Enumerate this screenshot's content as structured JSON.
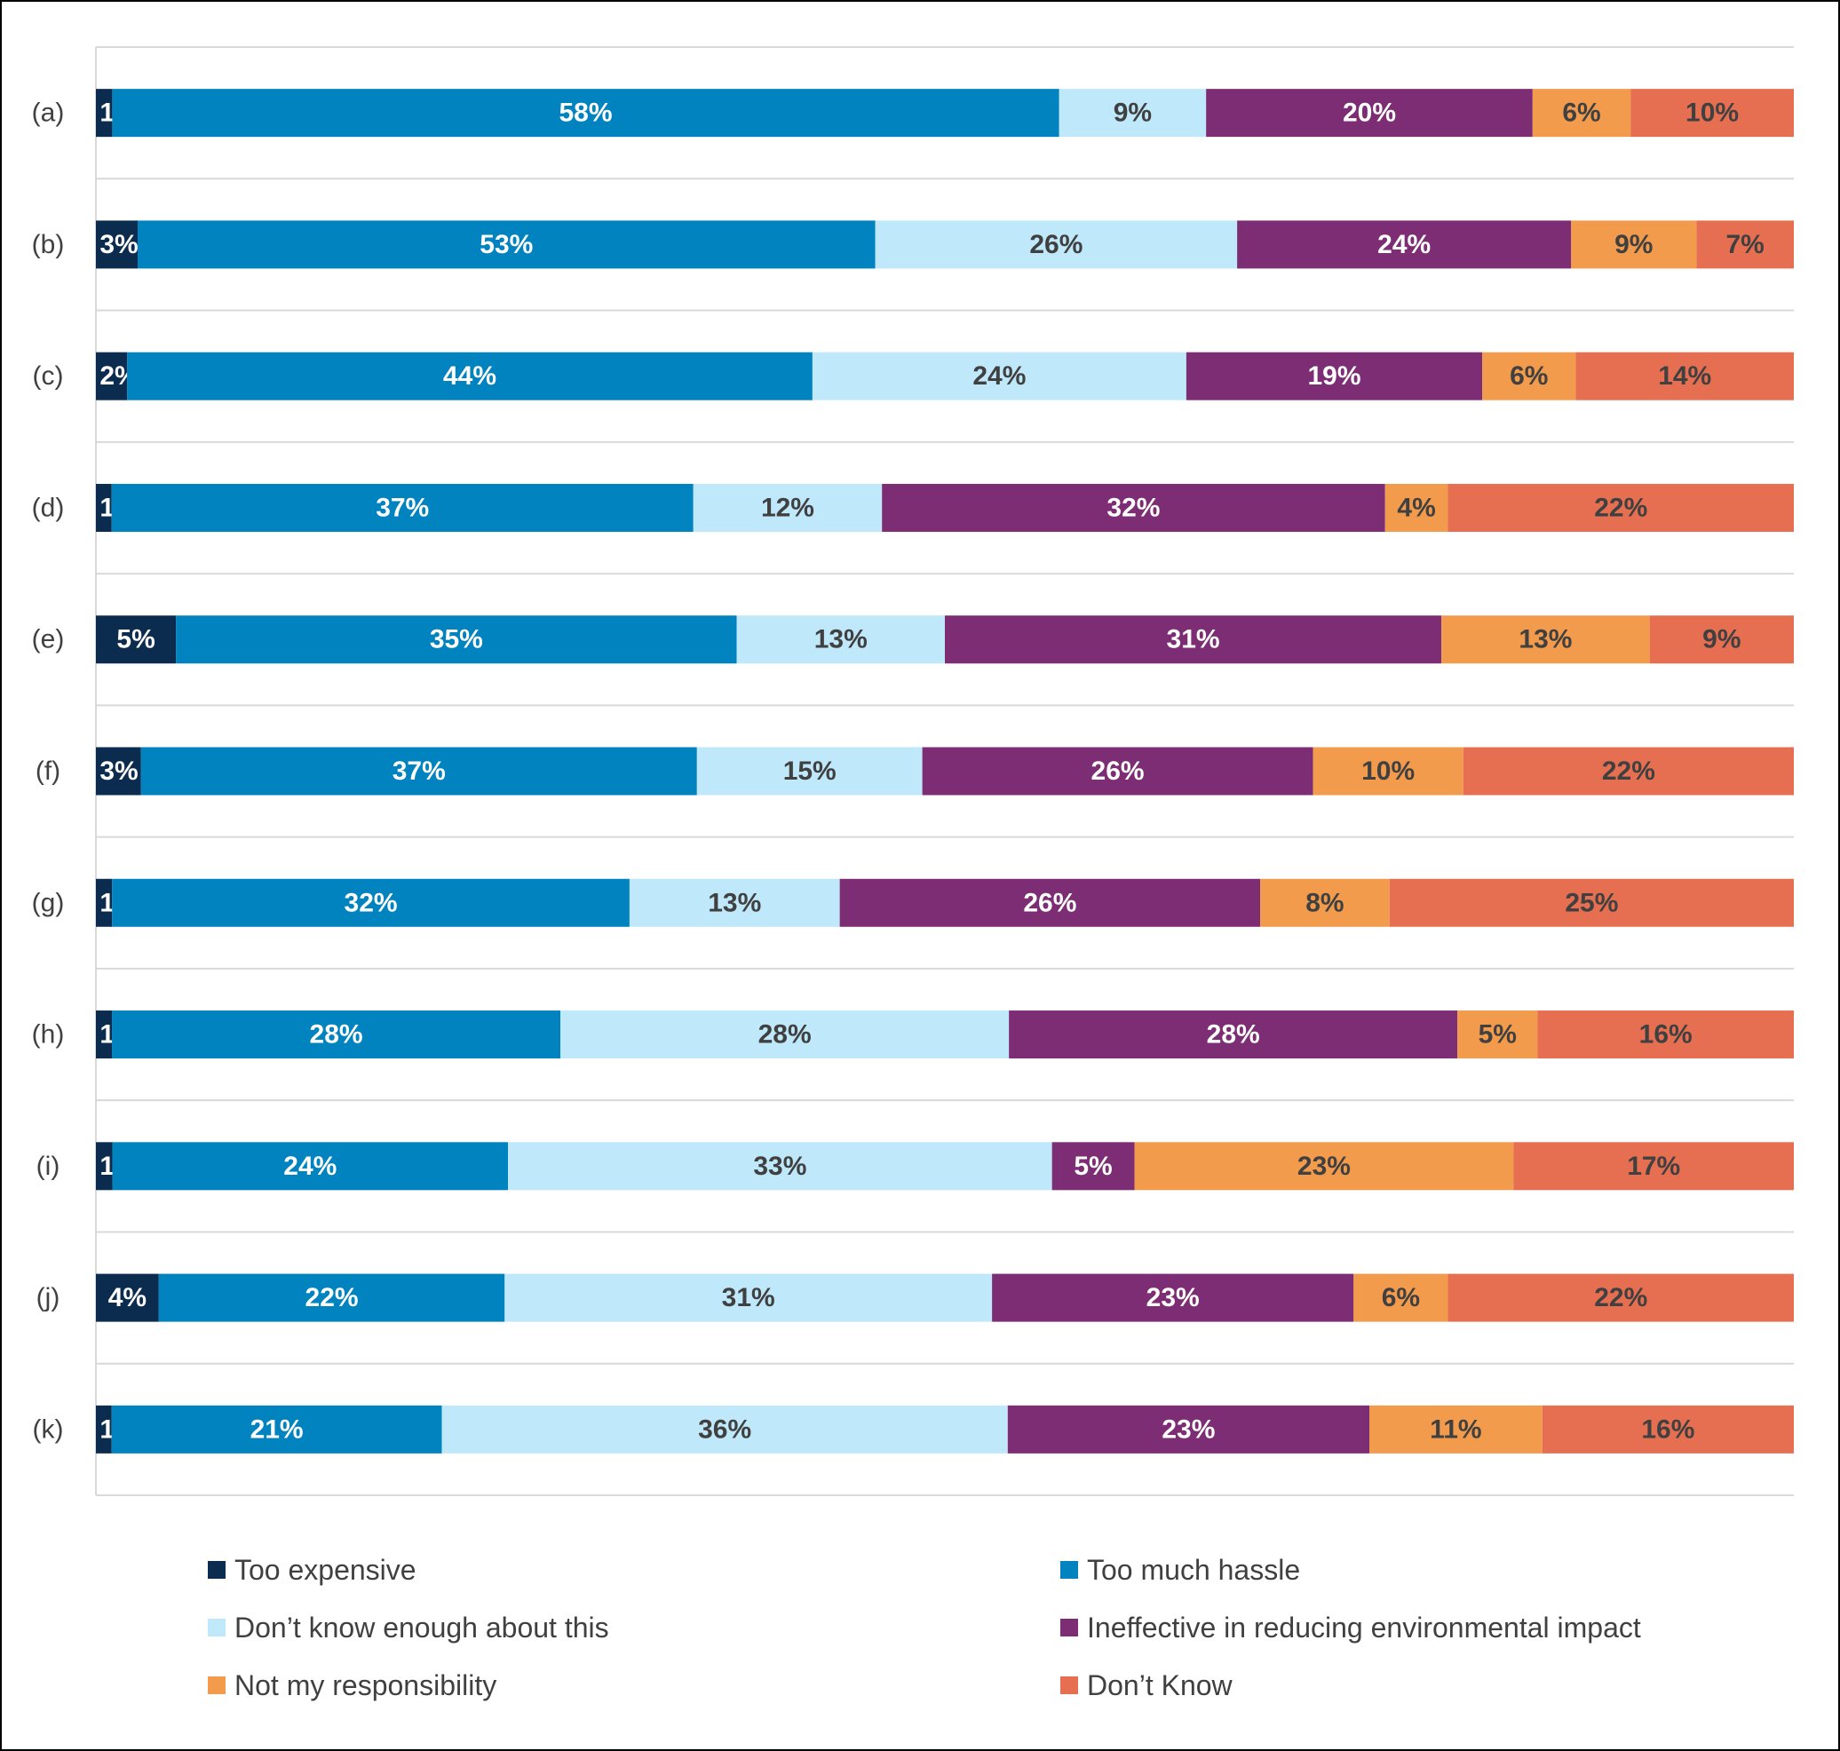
{
  "chart_data": {
    "type": "bar",
    "orientation": "horizontal",
    "stacked": true,
    "normalized": true,
    "title": "",
    "xlabel": "",
    "ylabel": "",
    "xlim": [
      0,
      100
    ],
    "grid": true,
    "legend_position": "bottom",
    "categories": [
      "(a)",
      "(b)",
      "(c)",
      "(d)",
      "(e)",
      "(f)",
      "(g)",
      "(h)",
      "(i)",
      "(j)",
      "(k)"
    ],
    "series": [
      {
        "name": "Too expensive",
        "color": "#0b2c4e",
        "label_color": "#ffffff",
        "values": [
          1,
          3,
          2,
          1,
          5,
          3,
          1,
          1,
          1,
          4,
          1
        ]
      },
      {
        "name": "Too much hassle",
        "color": "#0083bf",
        "label_color": "#ffffff",
        "values": [
          58,
          53,
          44,
          37,
          35,
          37,
          32,
          28,
          24,
          22,
          21
        ]
      },
      {
        "name": "Don’t know enough about this",
        "color": "#bfe8fa",
        "label_color": "#404040",
        "values": [
          9,
          26,
          24,
          12,
          13,
          15,
          13,
          28,
          33,
          31,
          36
        ]
      },
      {
        "name": "Ineffective in reducing environmental impact",
        "color": "#7c2d73",
        "label_color": "#ffffff",
        "values": [
          20,
          24,
          19,
          32,
          31,
          26,
          26,
          28,
          5,
          23,
          23
        ]
      },
      {
        "name": "Not my responsibility",
        "color": "#f29b4c",
        "label_color": "#404040",
        "values": [
          6,
          9,
          6,
          4,
          13,
          10,
          8,
          5,
          23,
          6,
          11
        ]
      },
      {
        "name": "Don’t Know",
        "color": "#e76f51",
        "label_color": "#404040",
        "values": [
          10,
          7,
          14,
          22,
          9,
          22,
          25,
          16,
          17,
          22,
          16
        ]
      }
    ]
  }
}
